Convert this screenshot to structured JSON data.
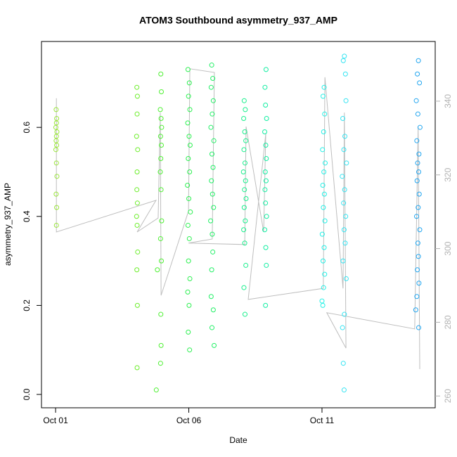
{
  "chart_data": {
    "type": "scatter",
    "title": "ATOM3 Southbound asymmetry_937_AMP",
    "x_label": "Date",
    "y_label": "asymmetry_937_AMP",
    "xlim": [
      0.47,
      15.25
    ],
    "ylim": [
      -0.03,
      0.793
    ],
    "y2lim": [
      256.8,
      356.2
    ],
    "xticks": [
      {
        "value": 1,
        "label": "Oct 01"
      },
      {
        "value": 6,
        "label": "Oct 06"
      },
      {
        "value": 11,
        "label": "Oct 11"
      }
    ],
    "yticks": [
      {
        "value": 0,
        "label": "0.0"
      },
      0.2,
      0.4,
      0.6
    ],
    "y2ticks": [
      260,
      280,
      300,
      320,
      340
    ],
    "y2_color": "#b3b3b3",
    "series": [
      {
        "axis": "y2",
        "color": "#bebebe",
        "x": [
          1.03,
          1.03,
          4.77,
          4.06,
          4.85,
          4.93,
          4.96,
          5.99,
          6.04,
          6.96,
          6.88,
          5.99,
          8.1,
          8.15,
          8.81,
          8.89,
          8.23,
          11.05,
          11.11,
          11.79,
          11.84,
          11.9,
          11.18,
          14.48,
          14.61,
          14.67
        ],
        "values": [
          340.8,
          304.5,
          313.1,
          304.5,
          308.3,
          336.9,
          287.3,
          310.2,
          348.8,
          347.8,
          302.6,
          301.5,
          301.1,
          333.1,
          304.5,
          331.2,
          286.2,
          289.2,
          346.5,
          289.2,
          336.9,
          273.0,
          282.6,
          278.2,
          333.1,
          267.3
        ]
      },
      {
        "color": "#9ae63a",
        "x": [
          1.02,
          1.04,
          1.03,
          1.01,
          1.05,
          1.03,
          1.02,
          1.04,
          1.01,
          1.03,
          1.05,
          1.02,
          1.04,
          1.03
        ],
        "values": [
          0.64,
          0.62,
          0.61,
          0.6,
          0.59,
          0.58,
          0.57,
          0.56,
          0.55,
          0.52,
          0.49,
          0.45,
          0.42,
          0.38
        ]
      },
      {
        "color": "#6cee2a",
        "x": [
          4.05,
          4.07,
          4.06,
          4.04,
          4.08,
          4.06,
          4.05,
          4.07,
          4.04,
          4.06,
          4.08,
          4.05,
          4.07,
          4.06
        ],
        "values": [
          0.69,
          0.67,
          0.63,
          0.58,
          0.55,
          0.5,
          0.46,
          0.43,
          0.4,
          0.38,
          0.32,
          0.28,
          0.2,
          0.06
        ]
      },
      {
        "color": "#4ef032",
        "x": [
          4.95,
          4.97,
          4.93,
          4.96,
          4.98,
          4.94,
          4.97,
          4.95,
          4.93,
          4.96,
          4.98,
          4.94,
          4.97,
          4.82,
          4.95,
          4.96,
          4.94,
          4.78
        ],
        "values": [
          0.72,
          0.68,
          0.64,
          0.62,
          0.6,
          0.58,
          0.56,
          0.53,
          0.5,
          0.46,
          0.39,
          0.35,
          0.3,
          0.28,
          0.18,
          0.11,
          0.07,
          0.01
        ]
      },
      {
        "color": "#2cf050",
        "x": [
          5.97,
          6.02,
          5.99,
          6.04,
          5.96,
          6.01,
          6.05,
          5.98,
          6.03,
          5.95,
          6.0,
          6.06,
          5.97,
          6.02,
          5.99,
          6.04,
          5.96,
          6.01,
          5.98,
          6.03
        ],
        "values": [
          0.73,
          0.7,
          0.67,
          0.64,
          0.61,
          0.58,
          0.56,
          0.53,
          0.5,
          0.47,
          0.44,
          0.41,
          0.38,
          0.35,
          0.3,
          0.26,
          0.23,
          0.2,
          0.14,
          0.1
        ]
      },
      {
        "color": "#22f066",
        "x": [
          6.86,
          6.9,
          6.84,
          6.92,
          6.88,
          6.83,
          6.94,
          6.87,
          6.91,
          6.85,
          6.89,
          6.93,
          6.82,
          6.88,
          6.9,
          6.86,
          6.84,
          6.92,
          6.87,
          6.95
        ],
        "values": [
          0.74,
          0.71,
          0.69,
          0.66,
          0.63,
          0.6,
          0.57,
          0.54,
          0.51,
          0.48,
          0.45,
          0.42,
          0.39,
          0.36,
          0.32,
          0.28,
          0.22,
          0.19,
          0.15,
          0.11
        ]
      },
      {
        "color": "#18ef8c",
        "x": [
          8.08,
          8.12,
          8.06,
          8.1,
          8.14,
          8.07,
          8.11,
          8.05,
          8.13,
          8.09,
          8.15,
          8.08,
          8.12,
          8.06,
          8.1,
          8.14,
          8.07,
          8.11
        ],
        "values": [
          0.66,
          0.64,
          0.62,
          0.59,
          0.57,
          0.55,
          0.52,
          0.5,
          0.48,
          0.46,
          0.44,
          0.42,
          0.39,
          0.37,
          0.34,
          0.29,
          0.24,
          0.18
        ]
      },
      {
        "color": "#12eea2",
        "x": [
          8.9,
          8.86,
          8.88,
          8.92,
          8.85,
          8.89,
          8.91,
          8.87,
          8.9,
          8.86,
          8.88,
          8.92,
          8.85,
          8.89,
          8.91,
          8.88
        ],
        "values": [
          0.73,
          0.69,
          0.65,
          0.62,
          0.59,
          0.56,
          0.53,
          0.5,
          0.48,
          0.46,
          0.43,
          0.4,
          0.37,
          0.33,
          0.29,
          0.2
        ]
      },
      {
        "color": "#22f0e6",
        "x": [
          11.08,
          11.04,
          11.1,
          11.06,
          11.02,
          11.12,
          11.07,
          11.03,
          11.09,
          11.05,
          11.11,
          11.01,
          11.08,
          11.04,
          11.1,
          11.06,
          11.0,
          11.03
        ],
        "values": [
          0.69,
          0.67,
          0.63,
          0.59,
          0.55,
          0.52,
          0.5,
          0.47,
          0.45,
          0.42,
          0.39,
          0.36,
          0.33,
          0.3,
          0.27,
          0.24,
          0.21,
          0.2
        ]
      },
      {
        "color": "#34e4f2",
        "x": [
          11.84,
          11.8,
          11.88,
          11.9,
          11.78,
          11.86,
          11.82,
          11.92,
          11.76,
          11.85,
          11.81,
          11.89,
          11.83,
          11.87,
          11.79,
          11.91,
          11.84,
          11.77,
          11.8,
          11.83
        ],
        "values": [
          0.76,
          0.75,
          0.72,
          0.66,
          0.62,
          0.58,
          0.55,
          0.52,
          0.49,
          0.46,
          0.43,
          0.4,
          0.37,
          0.34,
          0.3,
          0.26,
          0.18,
          0.15,
          0.07,
          0.01
        ]
      },
      {
        "color": "#22a6f0",
        "x": [
          14.62,
          14.58,
          14.66,
          14.54,
          14.6,
          14.68,
          14.56,
          14.64,
          14.59,
          14.63,
          14.57,
          14.65,
          14.61,
          14.55,
          14.67,
          14.6,
          14.62,
          14.58,
          14.64,
          14.56,
          14.52,
          14.63
        ],
        "values": [
          0.75,
          0.72,
          0.7,
          0.66,
          0.63,
          0.6,
          0.57,
          0.54,
          0.52,
          0.5,
          0.48,
          0.45,
          0.42,
          0.4,
          0.37,
          0.34,
          0.31,
          0.28,
          0.25,
          0.22,
          0.19,
          0.15
        ]
      }
    ]
  }
}
